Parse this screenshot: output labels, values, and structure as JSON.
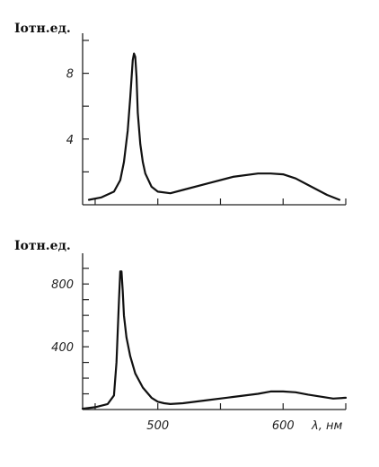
{
  "chart_data": [
    {
      "type": "line",
      "ylabel": "Iотн.ед.",
      "xlabel": "",
      "xlim": [
        440,
        650
      ],
      "ylim": [
        0,
        10
      ],
      "xticks": [
        450,
        500,
        550,
        600,
        650
      ],
      "x_tick_labels": [
        "",
        "",
        "",
        "",
        ""
      ],
      "yticks": [
        2,
        4,
        6,
        8,
        10
      ],
      "y_tick_labels": [
        "",
        "4",
        "",
        "8",
        ""
      ],
      "series": [
        {
          "x": [
            445,
            455,
            465,
            470,
            473,
            476,
            478,
            480,
            481,
            482,
            483,
            484,
            486,
            488,
            490,
            495,
            500,
            510,
            520,
            540,
            560,
            580,
            590,
            600,
            610,
            620,
            635,
            645
          ],
          "y": [
            0.3,
            0.45,
            0.8,
            1.5,
            2.6,
            4.5,
            6.5,
            8.8,
            9.2,
            9.0,
            7.8,
            5.6,
            3.7,
            2.6,
            1.9,
            1.1,
            0.8,
            0.7,
            0.9,
            1.3,
            1.7,
            1.9,
            1.9,
            1.85,
            1.6,
            1.2,
            0.6,
            0.3
          ]
        }
      ]
    },
    {
      "type": "line",
      "ylabel": "Iотн.ед.",
      "xlabel": "λ, нм",
      "xlim": [
        440,
        650
      ],
      "ylim": [
        0,
        950
      ],
      "xticks": [
        450,
        500,
        550,
        600,
        650
      ],
      "x_tick_labels": [
        "",
        "500",
        "",
        "600",
        ""
      ],
      "yticks": [
        100,
        200,
        300,
        400,
        500,
        600,
        700,
        800,
        900
      ],
      "y_tick_labels": [
        "",
        "",
        "",
        "400",
        "",
        "",
        "",
        "800",
        ""
      ],
      "series": [
        {
          "x": [
            440,
            450,
            460,
            465,
            467,
            469,
            470,
            471,
            472,
            473,
            475,
            478,
            482,
            488,
            495,
            500,
            505,
            510,
            520,
            540,
            560,
            580,
            590,
            600,
            610,
            620,
            640,
            650
          ],
          "y": [
            5,
            15,
            35,
            90,
            300,
            700,
            880,
            880,
            760,
            600,
            460,
            340,
            230,
            140,
            75,
            50,
            40,
            35,
            40,
            60,
            80,
            100,
            115,
            115,
            110,
            95,
            70,
            75
          ]
        }
      ]
    }
  ]
}
